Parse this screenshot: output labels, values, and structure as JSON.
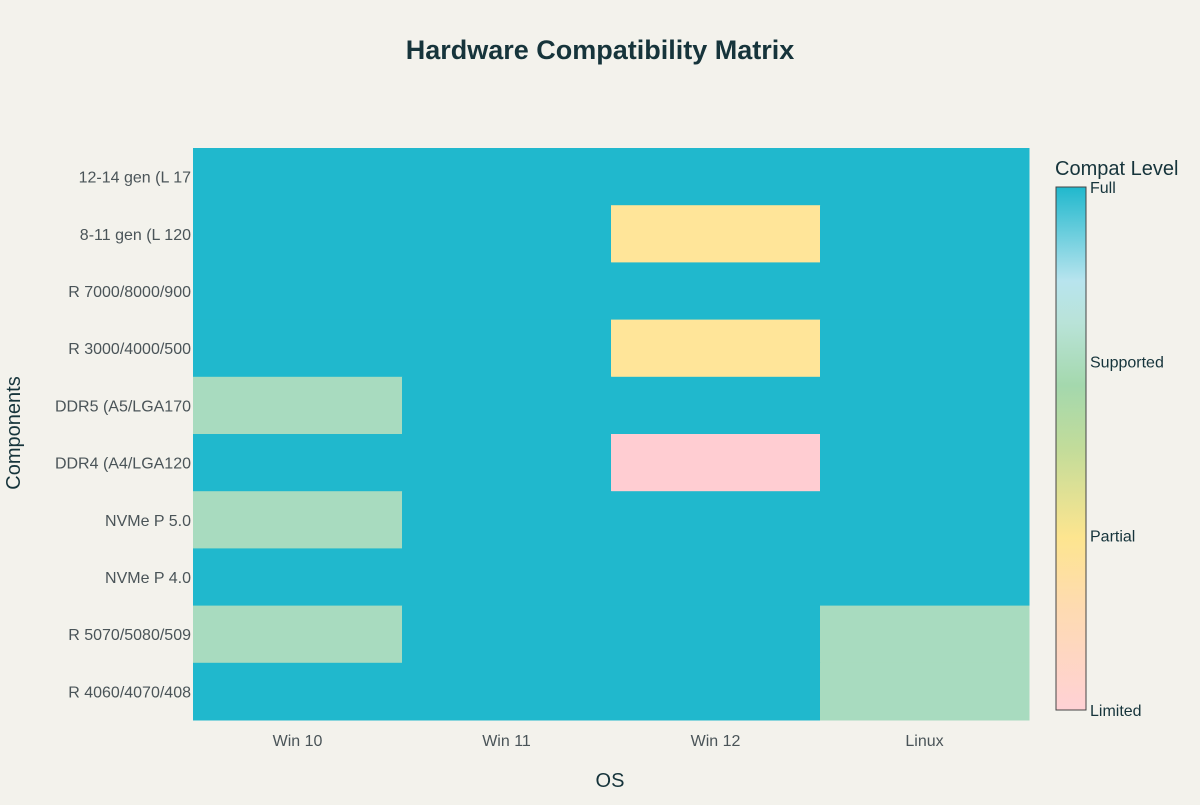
{
  "chart_data": {
    "type": "heatmap",
    "title": "Hardware Compatibility Matrix",
    "xlabel": "OS",
    "ylabel": "Components",
    "x": [
      "Win 10",
      "Win 11",
      "Win 12",
      "Linux"
    ],
    "y": [
      "12-14 gen (L 17",
      "8-11 gen (L 120",
      "R 7000/8000/900",
      "R 3000/4000/500",
      "DDR5 (A5/LGA170",
      "DDR4 (A4/LGA120",
      "NVMe P 5.0",
      "NVMe P 4.0",
      "R 5070/5080/509",
      "R 4060/4070/408"
    ],
    "z": [
      [
        3,
        3,
        3,
        3
      ],
      [
        3,
        3,
        1,
        3
      ],
      [
        3,
        3,
        3,
        3
      ],
      [
        3,
        3,
        1,
        3
      ],
      [
        2,
        3,
        3,
        3
      ],
      [
        3,
        3,
        0,
        3
      ],
      [
        2,
        3,
        3,
        3
      ],
      [
        3,
        3,
        3,
        3
      ],
      [
        2,
        3,
        3,
        2
      ],
      [
        3,
        3,
        3,
        2
      ]
    ],
    "zlim": [
      0,
      3
    ],
    "colorbar": {
      "title": "Compat Level",
      "ticks": [
        {
          "value": 3,
          "label": "Full"
        },
        {
          "value": 2,
          "label": "Supported"
        },
        {
          "value": 1,
          "label": "Partial"
        },
        {
          "value": 0,
          "label": "Limited"
        }
      ]
    },
    "colors": {
      "limited": "#ffcdd2",
      "partial": "#ffe599",
      "supported": "#a8dbbf",
      "full": "#20b8cd"
    },
    "grid": false,
    "legend": "right"
  }
}
